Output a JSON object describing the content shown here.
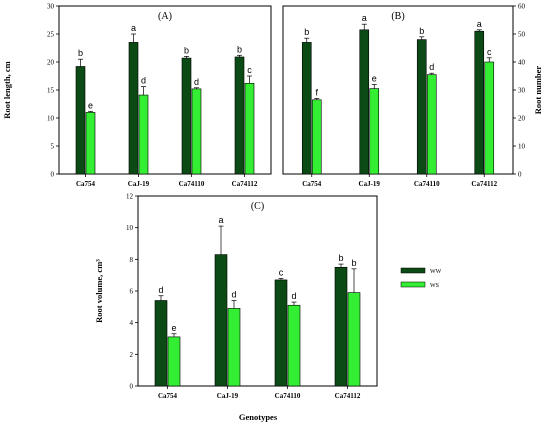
{
  "colors": {
    "WW": "#0b4a14",
    "WS": "#33ee33"
  },
  "xlabel": "Genotypes",
  "legend": {
    "placement": "right",
    "entries": [
      "WW",
      "WS"
    ]
  },
  "chart_data": [
    {
      "type": "bar",
      "title": "(A)",
      "ylabel": "Root length, cm",
      "ylim": [
        0,
        30
      ],
      "yticks": [
        0,
        5,
        10,
        15,
        20,
        25,
        30
      ],
      "y_axis_side": "left",
      "categories": [
        "Ca754",
        "CaJ-19",
        "Ca74110",
        "Ca74112"
      ],
      "series": [
        {
          "name": "WW",
          "values": [
            19.2,
            23.5,
            20.7,
            20.9
          ],
          "errors": [
            1.3,
            1.5,
            0.3,
            0.3
          ],
          "letters": [
            "b",
            "a",
            "b",
            "b"
          ]
        },
        {
          "name": "WS",
          "values": [
            11.0,
            14.1,
            15.2,
            16.2
          ],
          "errors": [
            0.2,
            1.5,
            0.2,
            1.3
          ],
          "letters": [
            "e",
            "d",
            "d",
            "c"
          ]
        }
      ]
    },
    {
      "type": "bar",
      "title": "(B)",
      "ylabel": "Root number",
      "ylim": [
        0,
        60
      ],
      "yticks": [
        0,
        10,
        20,
        30,
        40,
        50,
        60
      ],
      "y_axis_side": "right",
      "categories": [
        "Ca754",
        "CaJ-19",
        "Ca74110",
        "Ca74112"
      ],
      "series": [
        {
          "name": "WW",
          "values": [
            47.0,
            51.5,
            48.0,
            51.0
          ],
          "errors": [
            1.5,
            2.0,
            1.0,
            0.5
          ],
          "letters": [
            "b",
            "a",
            "b",
            "a"
          ]
        },
        {
          "name": "WS",
          "values": [
            26.5,
            30.5,
            35.5,
            40.0
          ],
          "errors": [
            0.5,
            1.5,
            0.5,
            1.5
          ],
          "letters": [
            "f",
            "e",
            "d",
            "c"
          ]
        }
      ]
    },
    {
      "type": "bar",
      "title": "(C)",
      "ylabel": "Root volume, cm³",
      "ylim": [
        0,
        12
      ],
      "yticks": [
        0,
        2,
        4,
        6,
        8,
        10,
        12
      ],
      "y_axis_side": "left",
      "categories": [
        "Ca754",
        "CaJ-19",
        "Ca74110",
        "Ca74112"
      ],
      "series": [
        {
          "name": "WW",
          "values": [
            5.4,
            8.3,
            6.7,
            7.5
          ],
          "errors": [
            0.3,
            1.8,
            0.1,
            0.2
          ],
          "letters": [
            "d",
            "a",
            "c",
            "b"
          ]
        },
        {
          "name": "WS",
          "values": [
            3.1,
            4.9,
            5.1,
            5.9
          ],
          "errors": [
            0.2,
            0.5,
            0.2,
            1.5
          ],
          "letters": [
            "e",
            "d",
            "d",
            "b"
          ]
        }
      ]
    }
  ]
}
